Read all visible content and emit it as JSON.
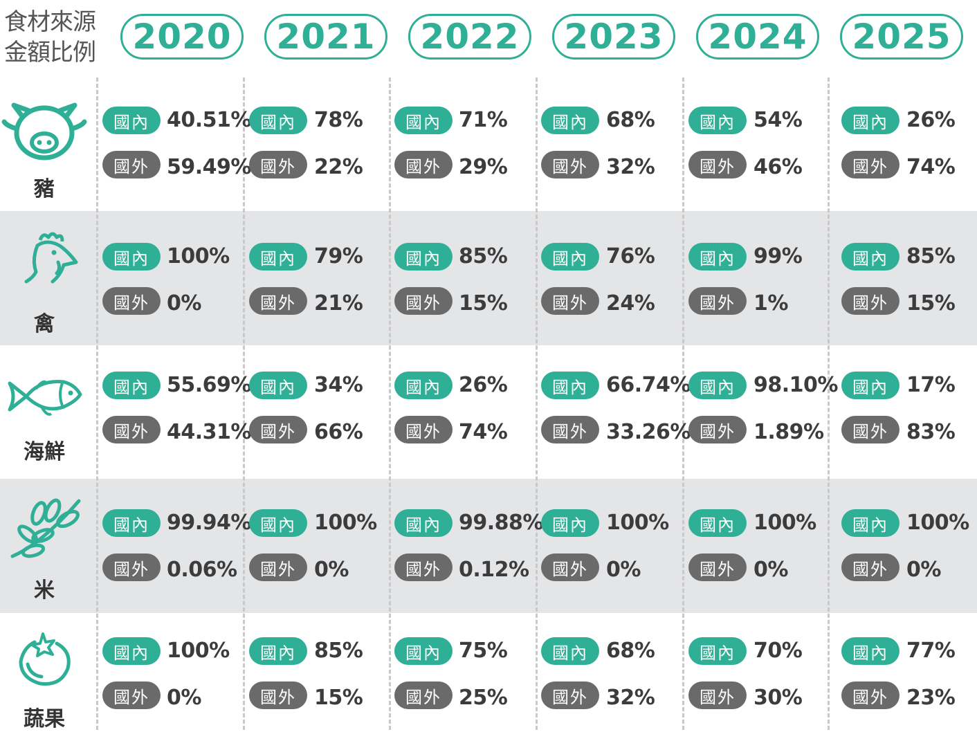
{
  "title_lines": [
    "食材來源",
    "金額比例"
  ],
  "domestic_label": "國內",
  "foreign_label": "國外",
  "colors": {
    "accent": "#2eaf96",
    "foreign_pill": "#6a6a6a",
    "row_shade": "#e4e5e7"
  },
  "chart_data": {
    "type": "table",
    "columns": [
      "2020",
      "2021",
      "2022",
      "2023",
      "2024",
      "2025"
    ],
    "rows": [
      {
        "label": "豬",
        "icon": "pig-icon",
        "domestic": [
          "40.51%",
          "78%",
          "71%",
          "68%",
          "54%",
          "26%"
        ],
        "foreign": [
          "59.49%",
          "22%",
          "29%",
          "32%",
          "46%",
          "74%"
        ]
      },
      {
        "label": "禽",
        "icon": "chicken-icon",
        "domestic": [
          "100%",
          "79%",
          "85%",
          "76%",
          "99%",
          "85%"
        ],
        "foreign": [
          "0%",
          "21%",
          "15%",
          "24%",
          "1%",
          "15%"
        ]
      },
      {
        "label": "海鮮",
        "icon": "fish-icon",
        "domestic": [
          "55.69%",
          "34%",
          "26%",
          "66.74%",
          "98.10%",
          "17%"
        ],
        "foreign": [
          "44.31%",
          "66%",
          "74%",
          "33.26%",
          "1.89%",
          "83%"
        ]
      },
      {
        "label": "米",
        "icon": "rice-icon",
        "domestic": [
          "99.94%",
          "100%",
          "99.88%",
          "100%",
          "100%",
          "100%"
        ],
        "foreign": [
          "0.06%",
          "0%",
          "0.12%",
          "0%",
          "0%",
          "0%"
        ]
      },
      {
        "label": "蔬果",
        "icon": "tomato-icon",
        "domestic": [
          "100%",
          "85%",
          "75%",
          "68%",
          "70%",
          "77%"
        ],
        "foreign": [
          "0%",
          "15%",
          "25%",
          "32%",
          "30%",
          "23%"
        ]
      }
    ]
  }
}
